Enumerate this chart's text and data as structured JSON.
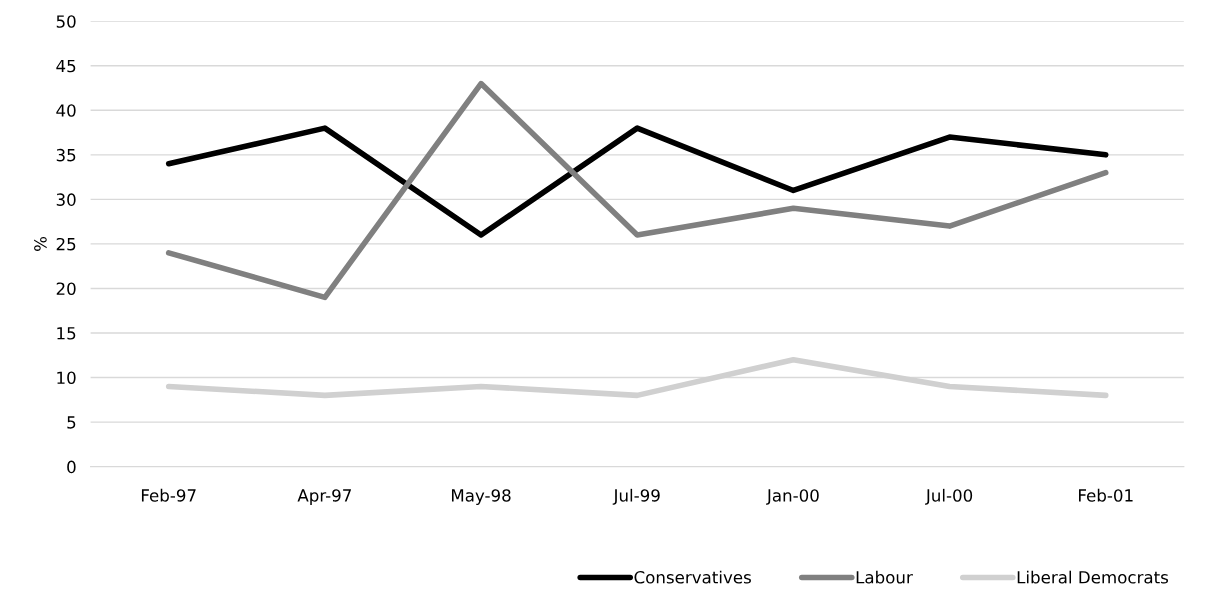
{
  "chart_data": {
    "type": "line",
    "ylabel": "%",
    "categories": [
      "Feb-97",
      "Apr-97",
      "May-98",
      "Jul-99",
      "Jan-00",
      "Jul-00",
      "Feb-01"
    ],
    "series": [
      {
        "name": "Conservatives",
        "color": "#000000",
        "values": [
          34,
          38,
          26,
          38,
          31,
          37,
          35
        ]
      },
      {
        "name": "Labour",
        "color": "#808080",
        "values": [
          24,
          19,
          43,
          26,
          29,
          27,
          33
        ]
      },
      {
        "name": "Liberal Democrats",
        "color": "#d0d0d0",
        "values": [
          9,
          8,
          9,
          8,
          12,
          9,
          8
        ]
      }
    ],
    "ylim": [
      0,
      50
    ],
    "yticks": [
      0,
      5,
      10,
      15,
      20,
      25,
      30,
      35,
      40,
      45,
      50
    ],
    "grid": "y",
    "legend": "bottom right",
    "marker": "none",
    "line_style": "solid"
  }
}
